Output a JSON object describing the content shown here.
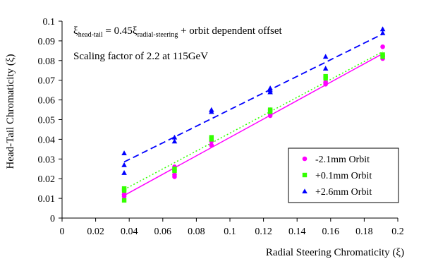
{
  "chart_data": {
    "type": "scatter",
    "title": "",
    "xlabel": "Radial Steering Chromaticity (ξ)",
    "ylabel": "Head-Tail Chromaticity (ξ)",
    "xlim": [
      0,
      0.2
    ],
    "ylim": [
      0,
      0.1
    ],
    "x_ticks": [
      "0",
      "0.02",
      "0.04",
      "0.06",
      "0.08",
      "0.1",
      "0.12",
      "0.14",
      "0.16",
      "0.18",
      "0.2"
    ],
    "y_ticks": [
      "0",
      "0.01",
      "0.02",
      "0.03",
      "0.04",
      "0.05",
      "0.06",
      "0.07",
      "0.08",
      "0.09",
      "0.1"
    ],
    "grid": false,
    "legend_position": "bottom-right",
    "annotations": {
      "formula_xi": "ξ",
      "formula_sub1": "head-tail",
      "formula_eq": " = 0.45ξ",
      "formula_sub2": "radial-steering",
      "formula_rest": " + orbit dependent offset",
      "scaling": "Scaling factor of 2.2 at 115GeV"
    },
    "series": [
      {
        "name": "-2.1mm Orbit",
        "color": "#ff00ff",
        "marker": "circle",
        "line_style": "solid",
        "x": [
          0.037,
          0.037,
          0.037,
          0.067,
          0.067,
          0.067,
          0.089,
          0.089,
          0.124,
          0.124,
          0.124,
          0.157,
          0.157,
          0.191,
          0.191,
          0.191
        ],
        "y": [
          0.011,
          0.012,
          0.012,
          0.021,
          0.022,
          0.026,
          0.037,
          0.039,
          0.052,
          0.053,
          0.055,
          0.068,
          0.069,
          0.081,
          0.082,
          0.087
        ],
        "fit": [
          [
            0.037,
            0.0115
          ],
          [
            0.191,
            0.0835
          ]
        ]
      },
      {
        "name": "+0.1mm Orbit",
        "color": "#33ff00",
        "marker": "square",
        "line_style": "dotted",
        "x": [
          0.037,
          0.037,
          0.037,
          0.067,
          0.067,
          0.089,
          0.089,
          0.124,
          0.124,
          0.157,
          0.157,
          0.191,
          0.191
        ],
        "y": [
          0.009,
          0.014,
          0.015,
          0.024,
          0.025,
          0.04,
          0.041,
          0.054,
          0.055,
          0.071,
          0.072,
          0.082,
          0.083
        ],
        "fit": [
          [
            0.037,
            0.0145
          ],
          [
            0.191,
            0.0845
          ]
        ]
      },
      {
        "name": "+2.6mm Orbit",
        "color": "#0000ff",
        "marker": "triangle",
        "line_style": "dashed",
        "x": [
          0.037,
          0.037,
          0.037,
          0.067,
          0.067,
          0.089,
          0.089,
          0.124,
          0.124,
          0.124,
          0.157,
          0.157,
          0.191,
          0.191
        ],
        "y": [
          0.023,
          0.027,
          0.033,
          0.039,
          0.041,
          0.054,
          0.055,
          0.064,
          0.065,
          0.066,
          0.076,
          0.082,
          0.094,
          0.096
        ],
        "fit": [
          [
            0.037,
            0.0285
          ],
          [
            0.191,
            0.0935
          ]
        ]
      }
    ]
  }
}
